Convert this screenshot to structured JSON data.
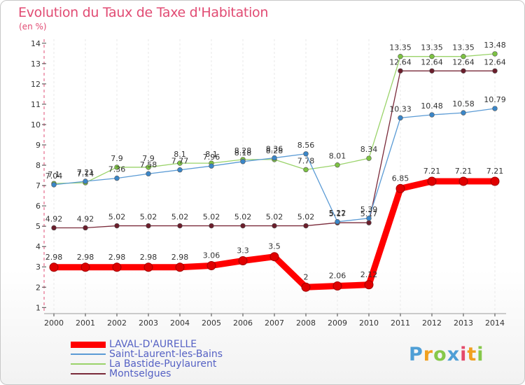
{
  "title": "Evolution du Taux de Taxe d'Habitation",
  "subtitle": "(en %)",
  "logo": {
    "letters": [
      {
        "ch": "P",
        "color": "#4f9fd6"
      },
      {
        "ch": "r",
        "color": "#f0a020"
      },
      {
        "ch": "o",
        "color": "#86c84a"
      },
      {
        "ch": "x",
        "color": "#4f9fd6"
      },
      {
        "ch": "i",
        "color": "#e44a6a"
      },
      {
        "ch": "t",
        "color": "#f0a020"
      },
      {
        "ch": "i",
        "color": "#86c84a"
      }
    ]
  },
  "chart_data": {
    "type": "line",
    "title": "Evolution du Taux de Taxe d'Habitation",
    "ylabel": "(en %)",
    "xlabel": "",
    "x": [
      "2000",
      "2001",
      "2002",
      "2003",
      "2004",
      "2005",
      "2006",
      "2007",
      "2008",
      "2009",
      "2010",
      "2011",
      "2012",
      "2013",
      "2014"
    ],
    "ylim": [
      0.7,
      14.2
    ],
    "yticks": [
      1,
      2,
      3,
      4,
      5,
      6,
      7,
      8,
      9,
      10,
      11,
      12,
      13,
      14
    ],
    "grid": "vertical dashed",
    "legend": "bottom-left",
    "series": [
      {
        "name": "LAVAL-D'AURELLE",
        "color": "#ff0000",
        "marker": "#e00000",
        "values": [
          2.98,
          2.98,
          2.98,
          2.98,
          2.98,
          3.06,
          3.3,
          3.5,
          2,
          2.06,
          2.12,
          6.85,
          7.21,
          7.21,
          7.21
        ],
        "labels": [
          "2.98",
          "2.98",
          "2.98",
          "2.98",
          "2.98",
          "3.06",
          "3.3",
          "3.5",
          "2",
          "2.06",
          "2.12",
          "6.85",
          "7.21",
          "7.21",
          "7.21"
        ]
      },
      {
        "name": "Saint-Laurent-les-Bains",
        "color": "#5b9bd5",
        "marker": "#3a86c8",
        "values": [
          7.04,
          7.21,
          7.36,
          7.58,
          7.77,
          7.96,
          8.18,
          8.36,
          8.56,
          5.22,
          5.39,
          10.33,
          10.48,
          10.58,
          10.79
        ],
        "labels": [
          "7.04",
          "7.21",
          "7.36",
          "7.58",
          "7.77",
          "7.96",
          "8.18",
          "8.36",
          "8.56",
          "5.22",
          "5.39",
          "10.33",
          "10.48",
          "10.58",
          "10.79"
        ]
      },
      {
        "name": "La Bastide-Puylaurent",
        "color": "#9ad36a",
        "marker": "#7dc243",
        "values": [
          7.1,
          7.14,
          7.9,
          7.9,
          8.1,
          8.1,
          8.28,
          8.28,
          7.78,
          8.01,
          8.34,
          13.35,
          13.35,
          13.35,
          13.48
        ],
        "labels": [
          "7.1",
          "7.14",
          "7.9",
          "7.9",
          "8.1",
          "8.1",
          "8.28",
          "8.28",
          "7.78",
          "8.01",
          "8.34",
          "13.35",
          "13.35",
          "13.35",
          "13.48"
        ]
      },
      {
        "name": "Montselgues",
        "color": "#7a2a3a",
        "marker": "#6b1e2c",
        "values": [
          4.92,
          4.92,
          5.02,
          5.02,
          5.02,
          5.02,
          5.02,
          5.02,
          5.02,
          5.17,
          5.17,
          12.64,
          12.64,
          12.64,
          12.64
        ],
        "labels": [
          "4.92",
          "4.92",
          "5.02",
          "5.02",
          "5.02",
          "5.02",
          "5.02",
          "5.02",
          "5.02",
          "5.17",
          "5.17",
          "12.64",
          "12.64",
          "12.64",
          "12.64"
        ]
      }
    ]
  }
}
